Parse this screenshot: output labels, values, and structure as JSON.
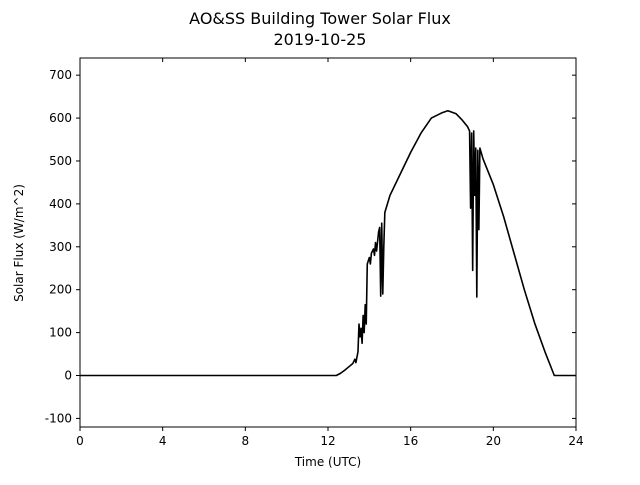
{
  "chart_data": {
    "type": "line",
    "title": "AO&SS Building Tower Solar Flux",
    "subtitle": "2019-10-25",
    "xlabel": "Time (UTC)",
    "ylabel": "Solar Flux (W/m^2)",
    "xlim": [
      0,
      24
    ],
    "ylim": [
      -120,
      740
    ],
    "xticks": [
      "0",
      "4",
      "8",
      "12",
      "16",
      "20",
      "24"
    ],
    "yticks": [
      "-100",
      "0",
      "100",
      "200",
      "300",
      "400",
      "500",
      "600",
      "700"
    ],
    "grid": false,
    "legend": "none",
    "series": [
      {
        "color": "#000000",
        "points": [
          [
            0,
            0
          ],
          [
            12.4,
            0
          ],
          [
            12.6,
            5
          ],
          [
            12.8,
            12
          ],
          [
            13.0,
            20
          ],
          [
            13.2,
            28
          ],
          [
            13.3,
            38
          ],
          [
            13.35,
            30
          ],
          [
            13.45,
            55
          ],
          [
            13.5,
            120
          ],
          [
            13.55,
            90
          ],
          [
            13.6,
            110
          ],
          [
            13.65,
            75
          ],
          [
            13.7,
            140
          ],
          [
            13.75,
            100
          ],
          [
            13.8,
            165
          ],
          [
            13.85,
            120
          ],
          [
            13.9,
            260
          ],
          [
            14.0,
            275
          ],
          [
            14.05,
            260
          ],
          [
            14.1,
            285
          ],
          [
            14.2,
            295
          ],
          [
            14.25,
            280
          ],
          [
            14.3,
            310
          ],
          [
            14.35,
            290
          ],
          [
            14.45,
            335
          ],
          [
            14.5,
            345
          ],
          [
            14.55,
            185
          ],
          [
            14.6,
            355
          ],
          [
            14.65,
            190
          ],
          [
            14.7,
            300
          ],
          [
            14.75,
            380
          ],
          [
            15.0,
            420
          ],
          [
            15.5,
            470
          ],
          [
            16.0,
            520
          ],
          [
            16.5,
            565
          ],
          [
            17.0,
            600
          ],
          [
            17.5,
            612
          ],
          [
            17.8,
            617
          ],
          [
            18.2,
            610
          ],
          [
            18.5,
            595
          ],
          [
            18.75,
            580
          ],
          [
            18.85,
            570
          ],
          [
            18.9,
            390
          ],
          [
            18.95,
            565
          ],
          [
            19.0,
            245
          ],
          [
            19.05,
            570
          ],
          [
            19.1,
            420
          ],
          [
            19.15,
            530
          ],
          [
            19.2,
            183
          ],
          [
            19.25,
            525
          ],
          [
            19.3,
            340
          ],
          [
            19.35,
            530
          ],
          [
            19.5,
            505
          ],
          [
            20.0,
            445
          ],
          [
            20.5,
            370
          ],
          [
            21.0,
            285
          ],
          [
            21.5,
            200
          ],
          [
            22.0,
            122
          ],
          [
            22.5,
            55
          ],
          [
            22.95,
            0
          ],
          [
            24.0,
            0
          ]
        ]
      }
    ]
  }
}
